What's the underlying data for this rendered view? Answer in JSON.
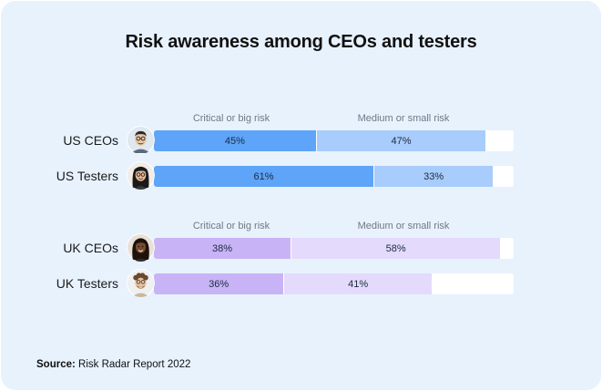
{
  "chart_data": {
    "type": "bar",
    "stacked": true,
    "orientation": "horizontal",
    "title": "Risk awareness among CEOs and testers",
    "xlim": [
      0,
      100
    ],
    "groups": [
      {
        "id": "us",
        "column_headers": [
          "Critical or big risk",
          "Medium or small risk"
        ],
        "colors": [
          "#5ea4f8",
          "#a8ccfb"
        ],
        "categories": [
          "US CEOs",
          "US Testers"
        ],
        "series": [
          {
            "name": "Critical or big risk",
            "values": [
              45,
              61
            ]
          },
          {
            "name": "Medium or small risk",
            "values": [
              47,
              33
            ]
          }
        ],
        "value_labels": [
          [
            "45%",
            "47%"
          ],
          [
            "61%",
            "33%"
          ]
        ]
      },
      {
        "id": "uk",
        "column_headers": [
          "Critical or big risk",
          "Medium or small risk"
        ],
        "colors": [
          "#c8b3f6",
          "#e4dafc"
        ],
        "categories": [
          "UK CEOs",
          "UK Testers"
        ],
        "series": [
          {
            "name": "Critical or big risk",
            "values": [
              38,
              36
            ]
          },
          {
            "name": "Medium or small risk",
            "values": [
              58,
              41
            ]
          }
        ],
        "value_labels": [
          [
            "38%",
            "58%"
          ],
          [
            "36%",
            "41%"
          ]
        ]
      }
    ]
  },
  "avatars": [
    {
      "row": "US CEOs",
      "icon": "man-with-glasses-avatar-icon",
      "skin": "#e9c6a4",
      "hair": "#2b2b2b"
    },
    {
      "row": "US Testers",
      "icon": "woman-with-glasses-avatar-icon",
      "skin": "#e6b994",
      "hair": "#1a1a1a"
    },
    {
      "row": "UK CEOs",
      "icon": "woman-avatar-icon",
      "skin": "#7a4b2e",
      "hair": "#1c120c"
    },
    {
      "row": "UK Testers",
      "icon": "man-with-curly-hair-avatar-icon",
      "skin": "#e7c09c",
      "hair": "#6b4a2b"
    }
  ],
  "source": {
    "label": "Source:",
    "text": "Risk Radar Report 2022"
  }
}
